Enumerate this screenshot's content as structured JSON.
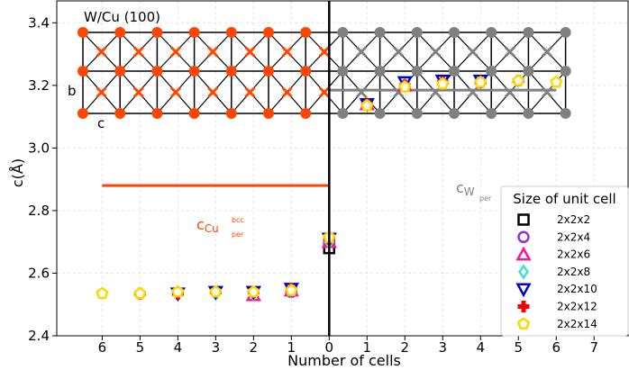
{
  "chart_data": {
    "type": "scatter",
    "xlabel": "Number of cells",
    "ylabel": "c(Å)",
    "ylim": [
      2.4,
      3.47
    ],
    "xlim": [
      -7.2,
      7.9
    ],
    "yticks": [
      2.4,
      2.6,
      2.8,
      3.0,
      3.2,
      3.4
    ],
    "ytick_labels": [
      "2.4",
      "2.6",
      "2.8",
      "3.0",
      "3.2",
      "3.4"
    ],
    "xticks": [
      -6,
      -5,
      -4,
      -3,
      -2,
      -1,
      0,
      1,
      2,
      3,
      4,
      5,
      6,
      7
    ],
    "xtick_labels": [
      "6",
      "5",
      "4",
      "3",
      "2",
      "1",
      "0",
      "1",
      "2",
      "3",
      "4",
      "5",
      "6",
      "7"
    ],
    "grid": true,
    "legend": {
      "title": "Size of unit cell",
      "placement": "lower-right"
    },
    "inset": {
      "title": "W/Cu (100)",
      "label_b": "b",
      "label_c": "c",
      "cu_color": "#ff4500",
      "w_color": "#808080",
      "cu_columns": 7,
      "w_columns": 7
    },
    "reference_lines": [
      {
        "label_main": "c",
        "label_sub": "Cu",
        "label_sup": "bcc",
        "label_sub2": "per",
        "y": 2.88,
        "x_range": [
          -6,
          0
        ],
        "color": "#ff4500"
      },
      {
        "label_main": "c",
        "label_sub": "W",
        "label_sub2": "per",
        "y": 3.185,
        "x_range": [
          0,
          6
        ],
        "color": "#808080"
      }
    ],
    "series": [
      {
        "name": "2x2x2",
        "marker": "square",
        "color": "#000000",
        "points": [
          [
            0,
            2.68
          ]
        ]
      },
      {
        "name": "2x2x4",
        "marker": "circle",
        "color": "#9932cc",
        "points": [
          [
            -1,
            2.54
          ],
          [
            0,
            2.7
          ],
          [
            1,
            3.14
          ]
        ]
      },
      {
        "name": "2x2x6",
        "marker": "triangle-up",
        "color": "#ff1493",
        "points": [
          [
            -2,
            2.53
          ],
          [
            -1,
            2.545
          ],
          [
            0,
            2.7
          ],
          [
            1,
            3.14
          ],
          [
            2,
            3.2
          ]
        ]
      },
      {
        "name": "2x2x8",
        "marker": "diamond",
        "color": "#40e0d0",
        "points": [
          [
            -3,
            2.535
          ],
          [
            -2,
            2.535
          ],
          [
            -1,
            2.545
          ],
          [
            0,
            2.7
          ],
          [
            1,
            3.14
          ],
          [
            2,
            3.2
          ],
          [
            3,
            3.21
          ]
        ]
      },
      {
        "name": "2x2x10",
        "marker": "triangle-down",
        "color": "#0000cd",
        "points": [
          [
            -4,
            2.535
          ],
          [
            -3,
            2.54
          ],
          [
            -2,
            2.54
          ],
          [
            -1,
            2.55
          ],
          [
            0,
            2.71
          ],
          [
            1,
            3.14
          ],
          [
            2,
            3.21
          ],
          [
            3,
            3.215
          ],
          [
            4,
            3.215
          ]
        ]
      },
      {
        "name": "2x2x12",
        "marker": "plus",
        "color": "#ff0000",
        "points": [
          [
            -5,
            2.535
          ],
          [
            -4,
            2.535
          ],
          [
            -3,
            2.54
          ],
          [
            -2,
            2.54
          ],
          [
            -1,
            2.55
          ],
          [
            0,
            2.71
          ],
          [
            1,
            3.14
          ],
          [
            2,
            3.2
          ],
          [
            3,
            3.21
          ],
          [
            4,
            3.21
          ],
          [
            5,
            3.215
          ]
        ]
      },
      {
        "name": "2x2x14",
        "marker": "pentagon",
        "color": "#ffd700",
        "points": [
          [
            -6,
            2.535
          ],
          [
            -5,
            2.535
          ],
          [
            -4,
            2.54
          ],
          [
            -3,
            2.54
          ],
          [
            -2,
            2.54
          ],
          [
            -1,
            2.545
          ],
          [
            0,
            2.715
          ],
          [
            1,
            3.135
          ],
          [
            2,
            3.195
          ],
          [
            3,
            3.205
          ],
          [
            4,
            3.21
          ],
          [
            5,
            3.215
          ],
          [
            6,
            3.21
          ]
        ]
      }
    ]
  }
}
